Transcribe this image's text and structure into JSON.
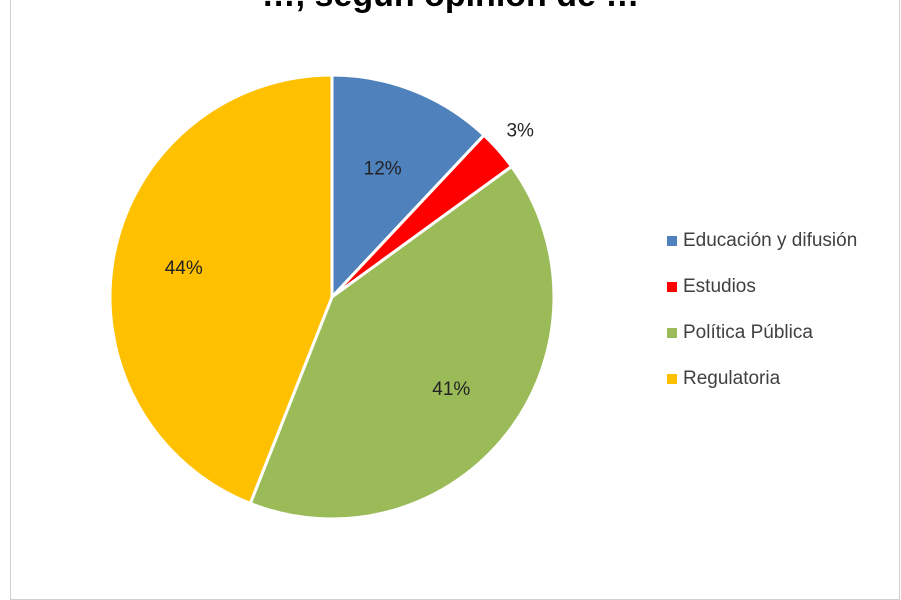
{
  "chart_data": {
    "type": "pie",
    "title": "…, según opinión de …",
    "categories": [
      "Educación y difusión",
      "Estudios",
      "Política Pública",
      "Regulatoria"
    ],
    "values": [
      12,
      3,
      41,
      44
    ],
    "value_labels": [
      "12%",
      "3%",
      "41%",
      "44%"
    ],
    "colors": [
      "#4f81bd",
      "#ff0000",
      "#9bbb59",
      "#ffc000"
    ],
    "legend_position": "right",
    "start_angle_deg": 0,
    "direction": "clockwise"
  }
}
